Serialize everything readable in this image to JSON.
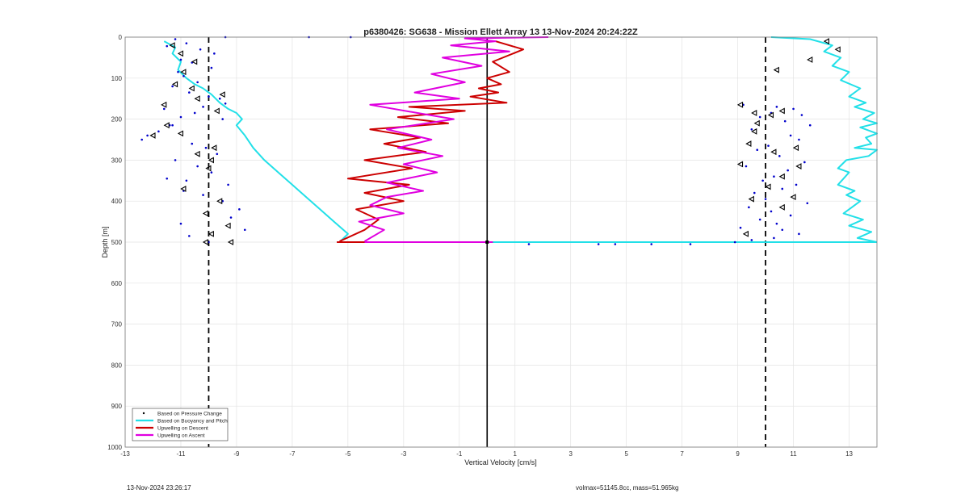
{
  "chart_data": {
    "type": "line",
    "title": "p6380426: SG638 - Mission Ellett Array 13 13-Nov-2024 20:24:22Z",
    "xlabel": "Vertical Velocity [cm/s]",
    "ylabel": "Depth [m]",
    "xlim": [
      -13,
      14
    ],
    "ylim": [
      0,
      1000
    ],
    "y_reversed": true,
    "grid": true,
    "xticks": [
      -13,
      -11,
      -9,
      -7,
      -5,
      -3,
      -1,
      1,
      3,
      5,
      7,
      9,
      11,
      13
    ],
    "yticks": [
      0,
      100,
      200,
      300,
      400,
      500,
      600,
      700,
      800,
      900,
      1000
    ],
    "reference_lines": [
      {
        "x": -10,
        "style": "dashed",
        "color": "#000000"
      },
      {
        "x": 10,
        "style": "dashed",
        "color": "#000000"
      },
      {
        "x": 0,
        "style": "solid",
        "color": "#000000"
      }
    ],
    "legend_position": "bottom-left",
    "series": [
      {
        "name": "Based on Pressure Change",
        "kind": "points",
        "color": "#0000cc",
        "x": [
          -11.2,
          -10.8,
          -11.5,
          -10.3,
          -9.8,
          -11.0,
          -10.6,
          -9.9,
          -11.1,
          -10.9,
          -10.4,
          -11.3,
          -10.7,
          -10.0,
          -9.6,
          -9.4,
          -10.2,
          -11.6,
          -10.5,
          -11.0,
          -9.5,
          -11.4,
          -12.2,
          -11.8,
          -10.6,
          -10.1,
          -9.7,
          -11.2,
          -10.4,
          -9.9,
          -11.5,
          -10.8,
          -9.3,
          -10.9,
          -10.2,
          -9.5,
          -8.9,
          -9.2,
          -11.0,
          -8.7,
          -10.7,
          -12.4,
          -11.3,
          -10.0,
          9.2,
          10.4,
          11.0,
          10.2,
          11.3,
          9.8,
          10.7,
          11.6,
          9.5,
          10.9,
          11.2,
          10.1,
          9.7,
          10.5,
          11.4,
          9.3,
          10.8,
          10.3,
          9.9,
          11.1,
          10.6,
          9.6,
          10.0,
          11.5,
          9.4,
          10.2,
          10.9,
          9.8,
          10.4,
          9.1,
          10.6,
          11.2,
          10.3,
          9.5,
          8.9
        ],
        "y": [
          5,
          15,
          22,
          30,
          40,
          55,
          62,
          75,
          85,
          95,
          110,
          120,
          135,
          145,
          150,
          162,
          170,
          175,
          185,
          195,
          200,
          215,
          240,
          230,
          260,
          270,
          285,
          300,
          315,
          330,
          345,
          350,
          360,
          375,
          385,
          400,
          420,
          440,
          455,
          470,
          485,
          250,
          215,
          500,
          165,
          170,
          175,
          185,
          190,
          195,
          205,
          215,
          225,
          240,
          250,
          265,
          275,
          290,
          305,
          315,
          325,
          340,
          350,
          360,
          370,
          380,
          395,
          405,
          415,
          425,
          435,
          445,
          455,
          465,
          470,
          480,
          490,
          495,
          500
        ],
        "outliers": [
          {
            "x": -6.4,
            "y": 0
          },
          {
            "x": -4.9,
            "y": 0
          },
          {
            "x": -9.4,
            "y": 0
          },
          {
            "x": 1.5,
            "y": 505
          },
          {
            "x": 4.0,
            "y": 505
          },
          {
            "x": 4.6,
            "y": 505
          },
          {
            "x": 5.9,
            "y": 505
          },
          {
            "x": 7.3,
            "y": 505
          }
        ]
      },
      {
        "name": "Based on Buoyancy and Pitch",
        "kind": "line",
        "color": "#22e0e8",
        "segments": [
          {
            "x": [
              -11.6,
              -11.2,
              -11.3,
              -11.0,
              -11.1,
              -10.8,
              -10.5,
              -10.2,
              -9.9,
              -9.6,
              -9.3,
              -9.0,
              -8.8,
              -9.0,
              -8.7,
              -8.4,
              -8.0,
              -7.5,
              -7.0,
              -6.5,
              -6.0,
              -5.5,
              -5.0,
              -5.3
            ],
            "y": [
              10,
              25,
              40,
              60,
              80,
              100,
              115,
              125,
              140,
              160,
              175,
              185,
              200,
              215,
              240,
              270,
              300,
              330,
              360,
              390,
              420,
              450,
              480,
              500
            ]
          },
          {
            "x": [
              -5.3,
              14.0
            ],
            "y": [
              500,
              500
            ]
          },
          {
            "x": [
              14.0,
              13.3,
              13.8,
              13.0,
              13.5,
              12.8,
              13.1,
              13.4,
              12.9,
              13.2,
              12.6,
              12.8,
              13.0,
              12.6,
              12.9,
              13.7,
              14.0,
              13.2,
              13.8,
              13.6,
              14.0,
              13.4,
              14.0,
              13.5,
              13.9,
              13.2,
              13.6,
              13.0,
              13.4,
              12.7,
              13.0,
              12.4,
              12.7,
              12.1,
              12.4,
              11.6,
              10.2
            ],
            "y": [
              500,
              490,
              475,
              460,
              445,
              430,
              415,
              400,
              385,
              375,
              360,
              345,
              330,
              320,
              300,
              290,
              275,
              270,
              260,
              245,
              235,
              220,
              210,
              200,
              185,
              170,
              160,
              145,
              125,
              105,
              85,
              70,
              50,
              35,
              20,
              5,
              0
            ]
          }
        ]
      },
      {
        "name": "Upwelling on Descent",
        "kind": "line",
        "color": "#cc0000",
        "segments": [
          {
            "x": [
              0.3,
              1.3,
              0.2,
              0.8,
              0.0,
              0.5,
              -0.3,
              0.4,
              -0.6,
              0.7,
              -2.8,
              -0.8,
              -3.2,
              -1.4,
              -4.2,
              -2.4,
              -3.7,
              -2.2,
              -4.4,
              -2.7,
              -5.0,
              -2.8,
              -4.4,
              -3.0,
              -4.7,
              -3.9,
              -4.4,
              -5.3
            ],
            "y": [
              10,
              30,
              60,
              85,
              100,
              115,
              125,
              135,
              145,
              160,
              170,
              180,
              195,
              210,
              225,
              245,
              260,
              280,
              300,
              320,
              345,
              360,
              380,
              400,
              420,
              445,
              470,
              498
            ]
          },
          {
            "x": [
              -5.4,
              0.2
            ],
            "y": [
              500,
              500
            ]
          }
        ]
      },
      {
        "name": "Upwelling on Ascent",
        "kind": "line",
        "color": "#e000e0",
        "segments": [
          {
            "x": [
              0.2,
              -4.4
            ],
            "y": [
              500,
              500
            ]
          },
          {
            "x": [
              -4.4,
              -3.7,
              -4.6,
              -3.0,
              -4.2,
              -3.6,
              -2.3,
              -3.6,
              -1.8,
              -3.0,
              -1.6,
              -3.2,
              -2.0,
              -3.6,
              -1.2,
              -2.5,
              -4.2,
              -1.0,
              -2.6,
              -0.8,
              -2.0,
              -0.2,
              -1.6,
              0.8,
              -1.3,
              0.3,
              -0.8,
              2.2
            ],
            "y": [
              498,
              470,
              450,
              430,
              410,
              390,
              375,
              355,
              330,
              310,
              290,
              270,
              250,
              225,
              200,
              185,
              165,
              150,
              135,
              110,
              90,
              70,
              50,
              35,
              20,
              10,
              3,
              0
            ]
          }
        ]
      },
      {
        "name": "",
        "kind": "triangles",
        "color": "#000000",
        "x": [
          -11.3,
          -11.0,
          -10.5,
          -10.9,
          -11.2,
          -10.6,
          -10.4,
          -9.5,
          -9.7,
          -11.6,
          -11.5,
          -11.0,
          -12.0,
          -9.8,
          -10.4,
          -9.9,
          -10.0,
          -10.9,
          -9.6,
          -10.1,
          -9.3,
          -9.9,
          -9.2,
          -10.1,
          9.1,
          9.6,
          10.6,
          10.2,
          9.7,
          9.6,
          9.4,
          11.1,
          10.3,
          9.1,
          10.6,
          11.2,
          10.1,
          11.0,
          9.5,
          10.6,
          11.6,
          10.4,
          12.2,
          12.6,
          9.3
        ],
        "y": [
          20,
          40,
          60,
          85,
          115,
          125,
          150,
          140,
          180,
          165,
          215,
          235,
          240,
          270,
          285,
          300,
          320,
          370,
          400,
          430,
          460,
          480,
          500,
          500,
          165,
          185,
          180,
          190,
          210,
          230,
          260,
          270,
          280,
          310,
          340,
          315,
          365,
          390,
          395,
          415,
          55,
          80,
          10,
          30,
          480
        ]
      }
    ]
  },
  "footer": {
    "timestamp": "13-Nov-2024 23:26:17",
    "stats": "volmax=51145.8cc, mass=51.965kg"
  }
}
